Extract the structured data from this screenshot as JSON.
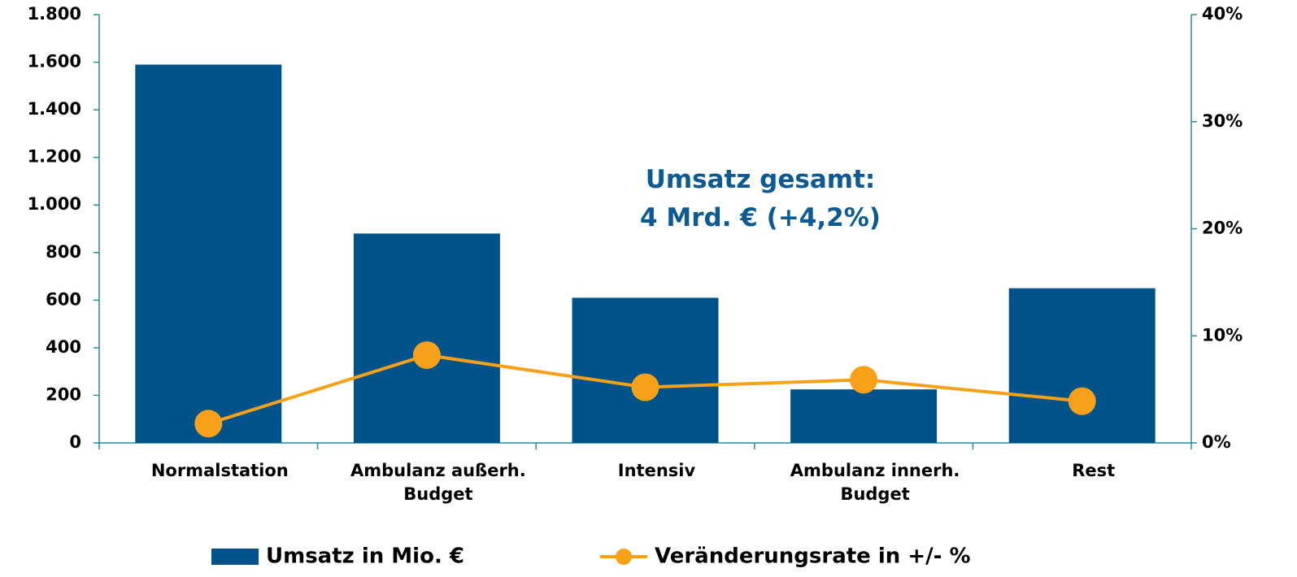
{
  "chart_data": {
    "type": "bar",
    "categories": [
      "Normalstation",
      "Ambulanz außerh.\nBudget",
      "Intensiv",
      "Ambulanz innerh.\nBudget",
      "Rest"
    ],
    "series": [
      {
        "name": "Umsatz in Mio. €",
        "type": "bar",
        "color": "#00538a",
        "values": [
          1590,
          880,
          610,
          225,
          650
        ]
      },
      {
        "name": "Veränderungsrate in +/- %",
        "type": "line",
        "axis": "y2",
        "color": "#f7a11a",
        "values": [
          1.8,
          8.2,
          5.2,
          5.9,
          3.9
        ]
      }
    ],
    "ylim": [
      0,
      1800
    ],
    "yticks": [
      0,
      {
        "value": 200,
        "label": "200"
      },
      400,
      600,
      800,
      {
        "value": 1000,
        "label": "1.000"
      },
      {
        "value": 1200,
        "label": "1.200"
      },
      {
        "value": 1400,
        "label": "1.400"
      },
      {
        "value": 1600,
        "label": "1.600"
      },
      {
        "value": 1800,
        "label": "1.800"
      }
    ],
    "y2lim": [
      0,
      40
    ],
    "y2ticks": [
      {
        "value": 0,
        "label": "0%"
      },
      {
        "value": 10,
        "label": "10%"
      },
      {
        "value": 20,
        "label": "20%"
      },
      {
        "value": 30,
        "label": "30%"
      },
      {
        "value": 40,
        "label": "40%"
      }
    ],
    "annotation": "Umsatz gesamt:\n4 Mrd. € (+4,2%)",
    "legend": "bottom"
  }
}
